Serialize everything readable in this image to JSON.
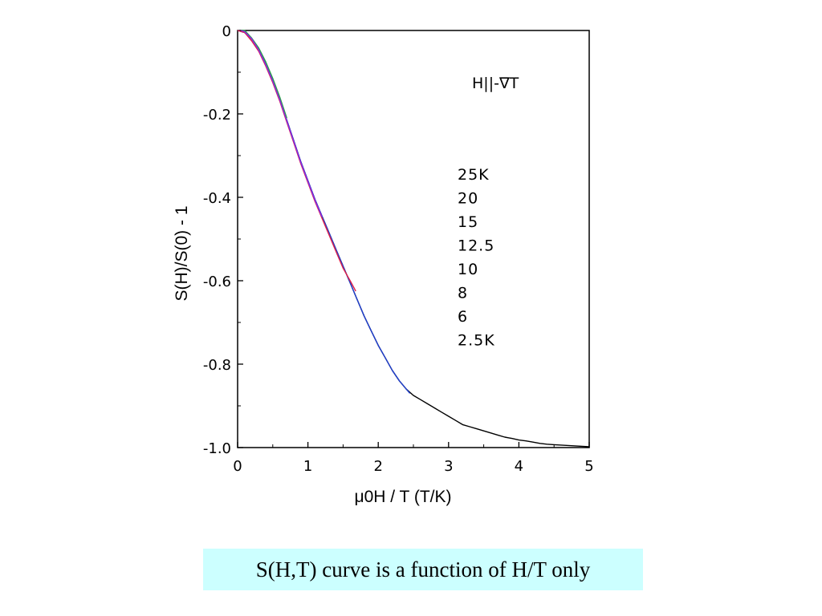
{
  "chart_data": {
    "type": "line",
    "xlabel": "μ0H / T (T/K)",
    "ylabel": "S(H)/S(0) - 1",
    "annotation": "H||-∇T",
    "xlim": [
      0,
      5
    ],
    "ylim": [
      -1.0,
      0
    ],
    "x_ticks": [
      0,
      1,
      2,
      3,
      4,
      5
    ],
    "x_tick_labels": [
      "0",
      "1",
      "2",
      "3",
      "4",
      "5"
    ],
    "y_ticks": [
      0,
      -0.2,
      -0.4,
      -0.6,
      -0.8,
      -1.0
    ],
    "y_tick_labels": [
      "0",
      "-0.2",
      "-0.4",
      "-0.6",
      "-0.8",
      "-1.0"
    ],
    "legend_entries": [
      "25K",
      "20",
      "15",
      "12.5",
      "10",
      "8",
      "6",
      "2.5K"
    ],
    "series": [
      {
        "color": "#000000",
        "x": [
          0,
          0.1,
          0.2,
          0.3,
          0.4,
          0.5,
          0.6,
          0.7,
          0.8,
          0.9,
          1.0,
          1.1,
          1.2,
          1.3,
          1.4,
          1.5,
          1.6,
          1.7,
          1.8,
          1.9,
          2.0,
          2.1,
          2.2,
          2.3,
          2.4,
          2.5,
          2.6,
          2.7,
          2.8,
          2.9,
          3.0,
          3.1,
          3.2,
          3.3,
          3.4,
          3.5,
          3.6,
          3.7,
          3.8,
          3.9,
          4.0,
          4.1,
          4.2,
          4.3,
          4.4,
          4.5,
          4.6,
          4.7,
          4.8,
          4.9,
          5.0
        ],
        "y": [
          0,
          -0.005,
          -0.02,
          -0.045,
          -0.08,
          -0.12,
          -0.165,
          -0.215,
          -0.265,
          -0.315,
          -0.36,
          -0.405,
          -0.445,
          -0.485,
          -0.525,
          -0.565,
          -0.605,
          -0.645,
          -0.685,
          -0.72,
          -0.755,
          -0.785,
          -0.815,
          -0.84,
          -0.86,
          -0.875,
          -0.885,
          -0.895,
          -0.905,
          -0.915,
          -0.925,
          -0.935,
          -0.945,
          -0.95,
          -0.955,
          -0.96,
          -0.965,
          -0.97,
          -0.975,
          -0.978,
          -0.982,
          -0.984,
          -0.987,
          -0.99,
          -0.992,
          -0.993,
          -0.994,
          -0.995,
          -0.996,
          -0.997,
          -0.998
        ]
      },
      {
        "color": "#1f3fd0",
        "x": [
          0,
          0.1,
          0.2,
          0.3,
          0.4,
          0.5,
          0.6,
          0.7,
          0.8,
          0.9,
          1.0,
          1.1,
          1.2,
          1.3,
          1.4,
          1.5,
          1.6,
          1.7,
          1.8,
          1.9,
          2.0,
          2.1,
          2.2,
          2.3,
          2.4,
          2.45
        ],
        "y": [
          0,
          -0.005,
          -0.02,
          -0.045,
          -0.08,
          -0.12,
          -0.165,
          -0.215,
          -0.265,
          -0.315,
          -0.36,
          -0.405,
          -0.445,
          -0.485,
          -0.525,
          -0.565,
          -0.605,
          -0.645,
          -0.685,
          -0.72,
          -0.755,
          -0.785,
          -0.815,
          -0.84,
          -0.86,
          -0.87
        ]
      },
      {
        "color": "#e0204a",
        "x": [
          0,
          0.1,
          0.2,
          0.3,
          0.4,
          0.5,
          0.6,
          0.7,
          0.8,
          0.9,
          1.0,
          1.1,
          1.2,
          1.3,
          1.4,
          1.5,
          1.6,
          1.68
        ],
        "y": [
          0,
          -0.005,
          -0.025,
          -0.05,
          -0.085,
          -0.125,
          -0.17,
          -0.22,
          -0.27,
          -0.32,
          -0.365,
          -0.41,
          -0.45,
          -0.49,
          -0.53,
          -0.57,
          -0.6,
          -0.625
        ]
      },
      {
        "color": "#2aa04a",
        "x": [
          0.05,
          0.1,
          0.2,
          0.3,
          0.4,
          0.5,
          0.6,
          0.7
        ],
        "y": [
          0,
          0,
          -0.018,
          -0.042,
          -0.075,
          -0.115,
          -0.16,
          -0.21
        ]
      },
      {
        "color": "#8a2be2",
        "x": [
          0.05,
          0.1,
          0.2,
          0.3,
          0.4,
          0.5,
          0.6,
          0.7,
          0.8,
          0.9,
          1.0,
          1.1,
          1.2
        ],
        "y": [
          0,
          -0.003,
          -0.02,
          -0.047,
          -0.082,
          -0.122,
          -0.167,
          -0.217,
          -0.267,
          -0.317,
          -0.362,
          -0.407,
          -0.447
        ]
      }
    ]
  },
  "caption": "S(H,T) curve is a function of H/T only"
}
